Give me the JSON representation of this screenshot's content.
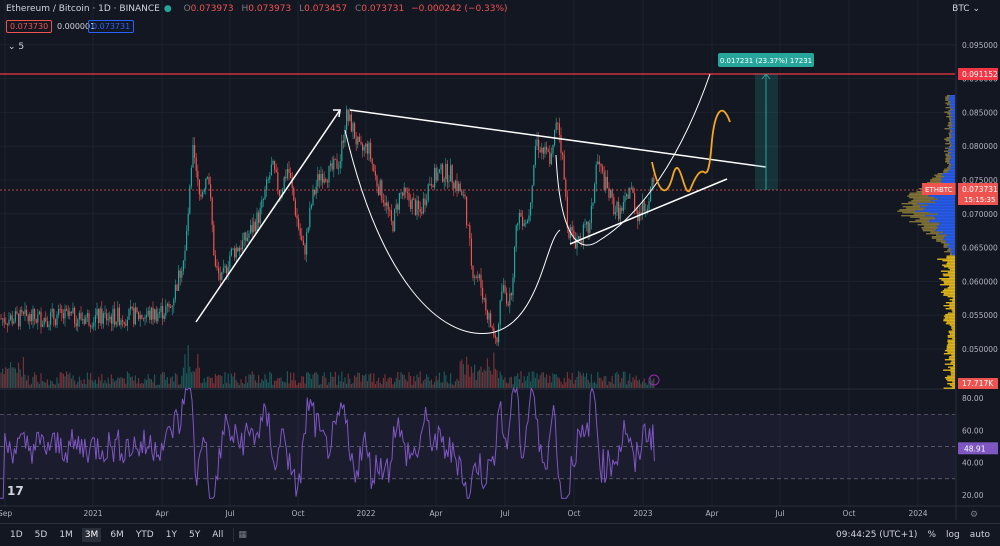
{
  "header": {
    "symbol": "Ethereum / Bitcoin · 1D · BINANCE",
    "o_label": "O",
    "o_val": "0.073973",
    "h_label": "H",
    "h_val": "0.073973",
    "l_label": "L",
    "l_val": "0.073457",
    "c_label": "C",
    "c_val": "0.073731",
    "chg": "−0.000242 (−0.33%)",
    "sell_price": "0.073730",
    "spread": "0.000001",
    "buy_price": "0.073731",
    "indicator_count": "5"
  },
  "currency": "BTC",
  "chart_data": {
    "type": "candlestick",
    "title": "Ethereum / Bitcoin · 1D · BINANCE",
    "y_ticks": [
      "0.095000",
      "0.090000",
      "0.085000",
      "0.080000",
      "0.075000",
      "0.070000",
      "0.065000",
      "0.060000",
      "0.055000",
      "0.050000"
    ],
    "y_tick_values": [
      0.095,
      0.09,
      0.085,
      0.08,
      0.075,
      0.07,
      0.065,
      0.06,
      0.055,
      0.05
    ],
    "x_ticks": [
      "Sep",
      "2021",
      "Apr",
      "Jul",
      "Oct",
      "2022",
      "Apr",
      "Jul",
      "Oct",
      "2023",
      "Apr",
      "Jul",
      "Oct",
      "2024"
    ],
    "price_path": [
      [
        0,
        0.0545
      ],
      [
        30,
        0.0545
      ],
      [
        60,
        0.0548
      ],
      [
        90,
        0.0546
      ],
      [
        120,
        0.0548
      ],
      [
        150,
        0.055
      ],
      [
        170,
        0.056
      ],
      [
        185,
        0.064
      ],
      [
        193,
        0.079
      ],
      [
        200,
        0.072
      ],
      [
        208,
        0.077
      ],
      [
        215,
        0.062
      ],
      [
        222,
        0.06
      ],
      [
        230,
        0.064
      ],
      [
        245,
        0.066
      ],
      [
        260,
        0.07
      ],
      [
        272,
        0.077
      ],
      [
        280,
        0.073
      ],
      [
        288,
        0.077
      ],
      [
        296,
        0.07
      ],
      [
        304,
        0.064
      ],
      [
        312,
        0.072
      ],
      [
        320,
        0.076
      ],
      [
        330,
        0.076
      ],
      [
        340,
        0.078
      ],
      [
        346,
        0.0845
      ],
      [
        352,
        0.083
      ],
      [
        360,
        0.079
      ],
      [
        368,
        0.08
      ],
      [
        376,
        0.075
      ],
      [
        385,
        0.072
      ],
      [
        392,
        0.068
      ],
      [
        400,
        0.073
      ],
      [
        410,
        0.072
      ],
      [
        420,
        0.07
      ],
      [
        430,
        0.075
      ],
      [
        440,
        0.076
      ],
      [
        450,
        0.076
      ],
      [
        458,
        0.074
      ],
      [
        465,
        0.072
      ],
      [
        472,
        0.062
      ],
      [
        480,
        0.06
      ],
      [
        486,
        0.056
      ],
      [
        492,
        0.053
      ],
      [
        497,
        0.051
      ],
      [
        502,
        0.059
      ],
      [
        510,
        0.057
      ],
      [
        518,
        0.07
      ],
      [
        528,
        0.069
      ],
      [
        536,
        0.081
      ],
      [
        544,
        0.079
      ],
      [
        552,
        0.078
      ],
      [
        557,
        0.085
      ],
      [
        562,
        0.079
      ],
      [
        568,
        0.068
      ],
      [
        575,
        0.066
      ],
      [
        582,
        0.067
      ],
      [
        590,
        0.068
      ],
      [
        597,
        0.078
      ],
      [
        606,
        0.074
      ],
      [
        614,
        0.071
      ],
      [
        622,
        0.07
      ],
      [
        630,
        0.074
      ],
      [
        638,
        0.07
      ],
      [
        645,
        0.071
      ],
      [
        652,
        0.074
      ],
      [
        656,
        0.07373
      ]
    ],
    "last_price": "0.073731",
    "last_label": "ETHBTC",
    "countdown": "15:15:35",
    "resistance_level": "0.091152",
    "volume_label": "17.717K",
    "measure_label": "0.017231 (23.37%) 17231",
    "rsi": {
      "value": "48.91",
      "y_ticks": [
        "80.00",
        "60.00",
        "40.00",
        "20.00"
      ],
      "upper": 70,
      "mid": 50,
      "lower": 30
    }
  },
  "timeframes": [
    "1D",
    "5D",
    "1M",
    "3M",
    "6M",
    "YTD",
    "1Y",
    "5Y",
    "All"
  ],
  "selected_timeframe": "3M",
  "clock": "09:44:25 (UTC+1)",
  "pct_label": "%",
  "log_label": "log",
  "auto_label": "auto",
  "colors": {
    "bg": "#131722",
    "up": "#26a69a",
    "down": "#ef5350",
    "resistance": "#f23645",
    "drawing": "#ffffff",
    "projection": "#f5a623",
    "rsi": "#7e57c2",
    "profile_up": "#2962ff",
    "profile_dn": "#f5c518"
  }
}
